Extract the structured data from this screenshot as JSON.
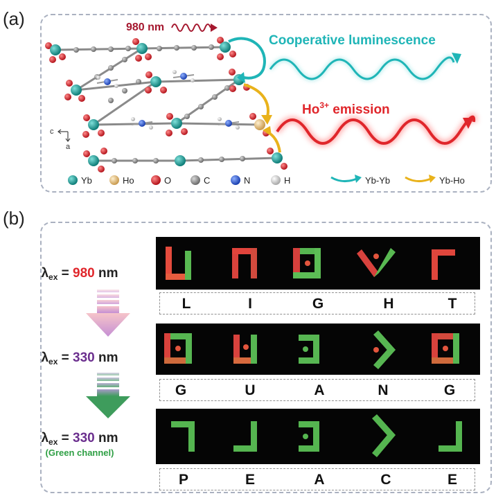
{
  "panel_a": {
    "label": "(a)",
    "excitation": "980 nm",
    "cooperative": "Cooperative luminescence",
    "ho_emission_prefix": "Ho",
    "ho_emission_sup": "3+",
    "ho_emission_suffix": " emission",
    "axis_c": "c",
    "axis_a": "a",
    "legend_atoms": [
      {
        "label": "Yb",
        "color": "#1a9e9a"
      },
      {
        "label": "Ho",
        "color": "#e8c88c"
      },
      {
        "label": "O",
        "color": "#e0222a"
      },
      {
        "label": "C",
        "color": "#888888"
      },
      {
        "label": "N",
        "color": "#2a57d6"
      },
      {
        "label": "H",
        "color": "#e6e6e6"
      }
    ],
    "legend_arrows": [
      {
        "label": "Yb-Yb",
        "color": "#1fb5b7"
      },
      {
        "label": "Yb-Ho",
        "color": "#e9b21b"
      }
    ]
  },
  "panel_b": {
    "label": "(b)",
    "rows": [
      {
        "lambda": "λ",
        "sub": "ex",
        "eq": " = ",
        "value": "980",
        "unit": " nm",
        "note": "",
        "letters": [
          "L",
          "I",
          "G",
          "H",
          "T"
        ]
      },
      {
        "lambda": "λ",
        "sub": "ex",
        "eq": " = ",
        "value": "330",
        "unit": " nm",
        "note": "",
        "letters": [
          "G",
          "U",
          "A",
          "N",
          "G"
        ]
      },
      {
        "lambda": "λ",
        "sub": "ex",
        "eq": " = ",
        "value": "330",
        "unit": " nm",
        "note": "(Green channel)",
        "letters": [
          "P",
          "E",
          "A",
          "C",
          "E"
        ]
      }
    ]
  }
}
